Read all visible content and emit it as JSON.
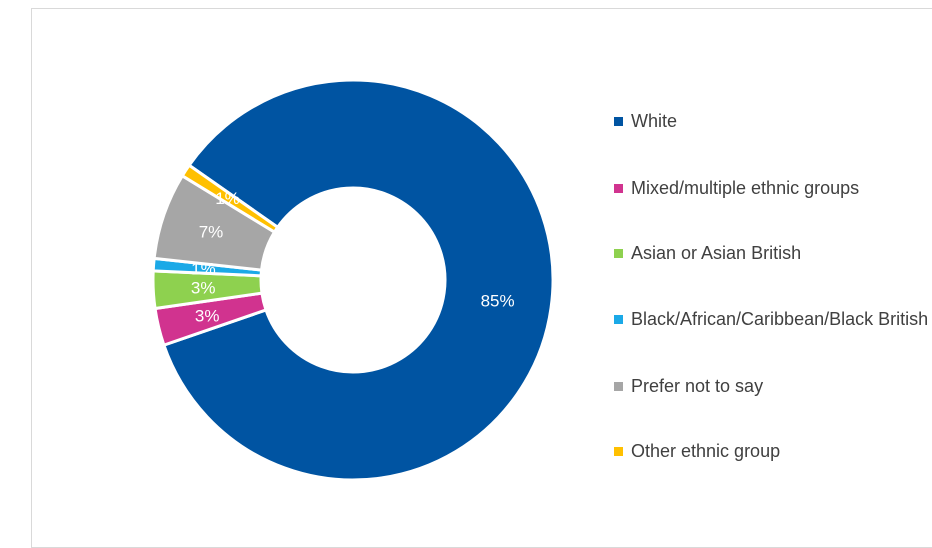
{
  "chart_data": {
    "type": "donut",
    "legend_position": "right",
    "series": [
      {
        "name": "White",
        "value": 85,
        "label": "85%",
        "color": "#0054A2"
      },
      {
        "name": "Mixed/multiple ethnic groups",
        "value": 3,
        "label": "3%",
        "color": "#D1338F"
      },
      {
        "name": "Asian or Asian British",
        "value": 3,
        "label": "3%",
        "color": "#8ED14F"
      },
      {
        "name": "Black/African/Caribbean/Black British",
        "value": 1,
        "label": "1%",
        "color": "#1BA9E7"
      },
      {
        "name": "Prefer not to say",
        "value": 7,
        "label": "7%",
        "color": "#A6A6A6"
      },
      {
        "name": "Other ethnic group",
        "value": 1,
        "label": "1%",
        "color": "#FFC000"
      }
    ]
  }
}
